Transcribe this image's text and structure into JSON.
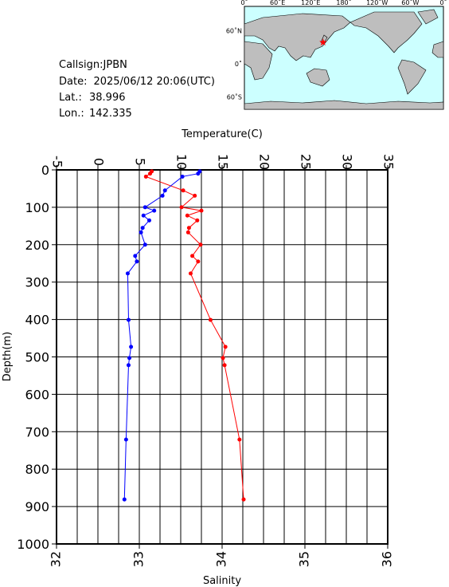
{
  "chart_data": {
    "type": "line",
    "x_label": "Salinity",
    "xlim": [
      32,
      36
    ],
    "xticks": [
      32,
      33,
      34,
      35,
      36
    ],
    "x2_label": "Temperature(C)",
    "x2lim": [
      -5,
      35
    ],
    "x2ticks": [
      -5,
      0,
      5,
      10,
      15,
      20,
      25,
      30,
      35
    ],
    "y_label": "Depth(m)",
    "ylim": [
      0,
      1000
    ],
    "yticks": [
      0,
      100,
      200,
      300,
      400,
      500,
      600,
      700,
      800,
      900,
      1000
    ],
    "y_inverted": true,
    "grid": true,
    "depth": [
      4,
      10,
      18,
      55,
      69,
      100,
      109,
      122,
      135,
      155,
      167,
      200,
      230,
      245,
      277,
      401,
      473,
      503,
      522,
      721,
      881
    ],
    "series": [
      {
        "color": "#ff0000",
        "axis": "x2",
        "values": [
          6.5,
          6.3,
          5.8,
          10.3,
          11.7,
          10.1,
          12.5,
          10.8,
          12.0,
          11.0,
          10.9,
          12.4,
          11.4,
          12.1,
          11.2,
          13.6,
          15.4,
          15.1,
          15.3,
          17.1,
          17.6
        ]
      },
      {
        "color": "#0000ff",
        "axis": "x",
        "values": [
          33.73,
          33.71,
          33.52,
          33.31,
          33.28,
          33.07,
          33.18,
          33.05,
          33.12,
          33.04,
          33.02,
          33.07,
          32.95,
          32.97,
          32.86,
          32.87,
          32.9,
          32.88,
          32.87,
          32.84,
          32.82
        ]
      }
    ]
  },
  "info": {
    "callsign": {
      "label": "Callsign:",
      "value": "JPBN"
    },
    "date": {
      "label": "Date:",
      "value": "2025/06/12 20:06(UTC)"
    },
    "lat": {
      "label": "Lat.:",
      "value": 38.996
    },
    "lon": {
      "label": "Lon.:",
      "value": 142.335
    }
  },
  "map": {
    "lon_labels": [
      "0˚",
      "60˚E",
      "120˚E",
      "180˚",
      "120˚W",
      "60˚W",
      "0˚"
    ],
    "lat_labels": [
      "60˚N",
      "0˚",
      "60˚S"
    ]
  }
}
